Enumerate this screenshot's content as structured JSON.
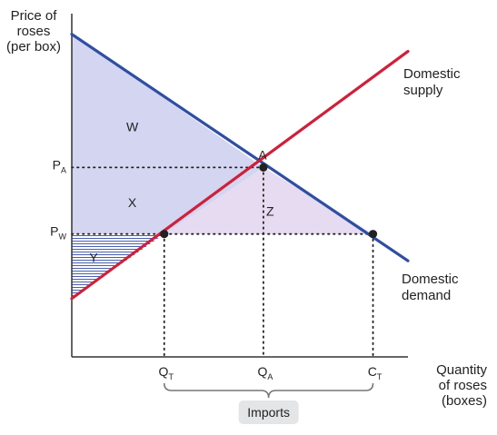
{
  "chart_data": {
    "type": "line",
    "title": "",
    "ylabel": [
      "Price of",
      "roses",
      "(per box)"
    ],
    "xlabel": [
      "Quantity",
      "of roses",
      "(boxes)"
    ],
    "xlim": [
      0,
      10
    ],
    "ylim": [
      0,
      10
    ],
    "grid": false,
    "series": [
      {
        "name": "Domestic demand",
        "label_lines": [
          "Domestic",
          "demand"
        ],
        "color": "#2f4ea3",
        "points": [
          [
            0,
            9.4
          ],
          [
            10,
            2.8
          ]
        ]
      },
      {
        "name": "Domestic supply",
        "label_lines": [
          "Domestic",
          "supply"
        ],
        "color": "#d0203a",
        "points": [
          [
            0,
            1.7
          ],
          [
            10,
            8.9
          ]
        ]
      }
    ],
    "y_ticks": [
      {
        "main": "P",
        "sub": "A",
        "value": 5.52
      },
      {
        "main": "P",
        "sub": "W",
        "value": 3.58
      }
    ],
    "x_ticks": [
      {
        "main": "Q",
        "sub": "T",
        "value": 2.75
      },
      {
        "main": "Q",
        "sub": "A",
        "value": 5.7
      },
      {
        "main": "C",
        "sub": "T",
        "value": 8.96
      }
    ],
    "points": [
      {
        "name": "A",
        "x": 5.7,
        "y": 5.52,
        "label": "A"
      },
      {
        "name": "QT",
        "x": 2.75,
        "y": 3.58,
        "label": ""
      },
      {
        "name": "CT",
        "x": 8.96,
        "y": 3.58,
        "label": ""
      }
    ],
    "regions": [
      {
        "name": "W",
        "label": "W",
        "fill": "#d3d5f1",
        "label_at": [
          1.8,
          6.7
        ]
      },
      {
        "name": "X",
        "label": "X",
        "fill": "#d3d5f1",
        "label_at": [
          1.8,
          4.5
        ]
      },
      {
        "name": "Y",
        "label": "Y",
        "fill": "hatch",
        "label_at": [
          0.65,
          2.9
        ]
      },
      {
        "name": "Z",
        "label": "Z",
        "fill": "#e6dbf0",
        "label_at": [
          5.9,
          4.25
        ]
      }
    ],
    "bracket": {
      "from": 2.75,
      "to": 8.96,
      "label": "Imports",
      "badge_color": "#e4e5e7"
    },
    "colors": {
      "axis": "#333333",
      "dots": "#222222"
    }
  }
}
